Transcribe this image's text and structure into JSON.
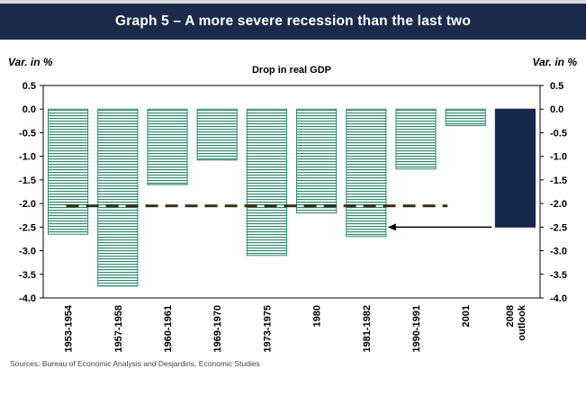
{
  "title": "Graph 5 – A more severe recession than the last two",
  "sources": "Sources: Bureau of Economic Analysis and Desjardins, Economic Studies",
  "colors": {
    "title_bg": "#1b2a4a",
    "historic_bar": "#2e8b6e",
    "outlook_bar": "#14284b",
    "reference_line": "#3a2a10",
    "arrow": "#000000"
  },
  "chart_data": {
    "type": "bar",
    "subtitle": "Drop in real GDP",
    "ylabel_left": "Var. in %",
    "ylabel_right": "Var. in %",
    "ylim": [
      -4.0,
      0.5
    ],
    "yticks": [
      "0.5",
      "0.0",
      "-0.5",
      "-1.0",
      "-1.5",
      "-2.0",
      "-2.5",
      "-3.0",
      "-3.5",
      "-4.0"
    ],
    "ytick_values": [
      0.5,
      0.0,
      -0.5,
      -1.0,
      -1.5,
      -2.0,
      -2.5,
      -3.0,
      -3.5,
      -4.0
    ],
    "categories": [
      "1953-1954",
      "1957-1958",
      "1960-1961",
      "1969-1970",
      "1973-1975",
      "1980",
      "1981-1982",
      "1990-1991",
      "2001",
      "2008 outlook"
    ],
    "category_lines": [
      [
        "1953-1954"
      ],
      [
        "1957-1958"
      ],
      [
        "1960-1961"
      ],
      [
        "1969-1970"
      ],
      [
        "1973-1975"
      ],
      [
        "1980"
      ],
      [
        "1981-1982"
      ],
      [
        "1990-1991"
      ],
      [
        "2001"
      ],
      [
        "2008",
        "outlook"
      ]
    ],
    "values": [
      -2.65,
      -3.75,
      -1.6,
      -1.08,
      -3.1,
      -2.2,
      -2.7,
      -1.27,
      -0.35,
      -2.5
    ],
    "highlight_index": 9,
    "reference_line": {
      "value": -2.05,
      "style": "dashed"
    },
    "arrow": {
      "from_category": "2008 outlook",
      "to_category": "1981-1982",
      "value": -2.5
    },
    "grid": false
  }
}
